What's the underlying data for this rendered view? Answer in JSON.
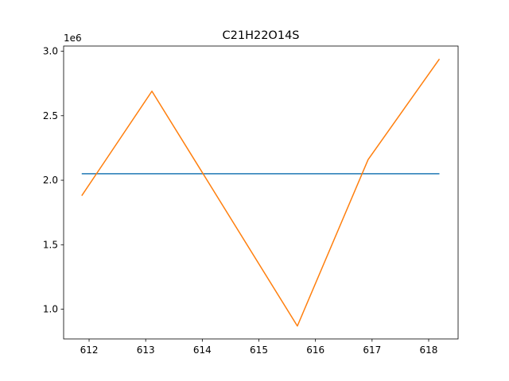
{
  "chart_data": {
    "type": "line",
    "title": "C21H22O14S",
    "xlabel": "",
    "ylabel": "",
    "y_offset_label": "1e6",
    "xlim": [
      611.55,
      618.52
    ],
    "ylim": [
      0.77,
      3.04
    ],
    "x_ticks": [
      612,
      613,
      614,
      615,
      616,
      617,
      618
    ],
    "y_ticks": [
      1.0,
      1.5,
      2.0,
      2.5,
      3.0
    ],
    "x_tick_labels": [
      "612",
      "613",
      "614",
      "615",
      "616",
      "617",
      "618"
    ],
    "y_tick_labels": [
      "1.0",
      "1.5",
      "2.0",
      "2.5",
      "3.0"
    ],
    "grid": false,
    "legend": "none",
    "series": [
      {
        "color": "#1f77b4",
        "x": [
          611.87,
          618.19
        ],
        "y": [
          2.05,
          2.05
        ]
      },
      {
        "color": "#ff7f0e",
        "x": [
          611.87,
          613.11,
          614.0,
          615.68,
          616.93,
          618.19
        ],
        "y": [
          1.88,
          2.69,
          2.06,
          0.87,
          2.16,
          2.94
        ]
      }
    ]
  }
}
